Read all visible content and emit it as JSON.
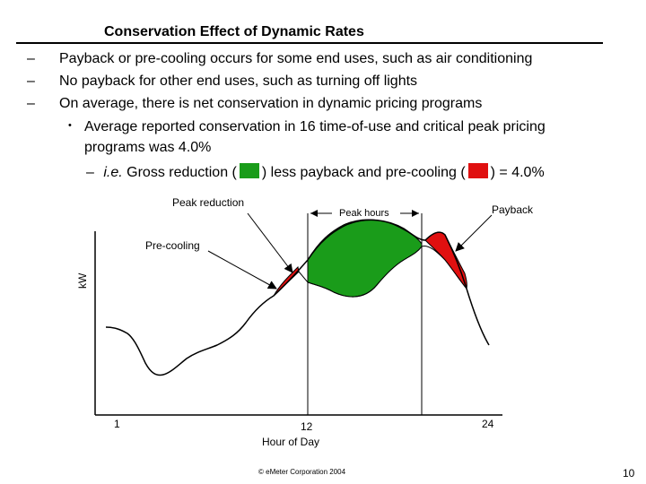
{
  "slide": {
    "title": "Conservation Effect of Dynamic Rates",
    "bullets": [
      {
        "marker": "–",
        "text": "Payback or pre-cooling occurs for some end uses, such as air conditioning"
      },
      {
        "marker": "–",
        "text": "No payback for other end uses, such as turning off lights"
      },
      {
        "marker": "–",
        "text": "On average, there is net conservation in dynamic pricing programs"
      },
      {
        "marker": "•",
        "text": "Average reported conservation in 16 time-of-use and critical peak pricing"
      },
      {
        "marker": "",
        "text": "programs was 4.0%"
      }
    ],
    "gross": {
      "marker": "–",
      "prefix": "i.e.",
      "part1": " Gross reduction (",
      "part2": ") less payback and pre-cooling (",
      "part3": ") = 4.0%"
    },
    "colors": {
      "reduction": "#1a9c1a",
      "payback": "#e01010"
    },
    "footer": "© eMeter Corporation 2004",
    "page_number": "10"
  },
  "diagram": {
    "labels": {
      "peak_reduction": "Peak reduction",
      "peak_hours": "Peak hours",
      "payback": "Payback",
      "pre_cooling": "Pre-cooling",
      "y_axis": "kW",
      "x_axis": "Hour of Day"
    },
    "x_ticks": [
      "1",
      "12",
      "24"
    ]
  }
}
